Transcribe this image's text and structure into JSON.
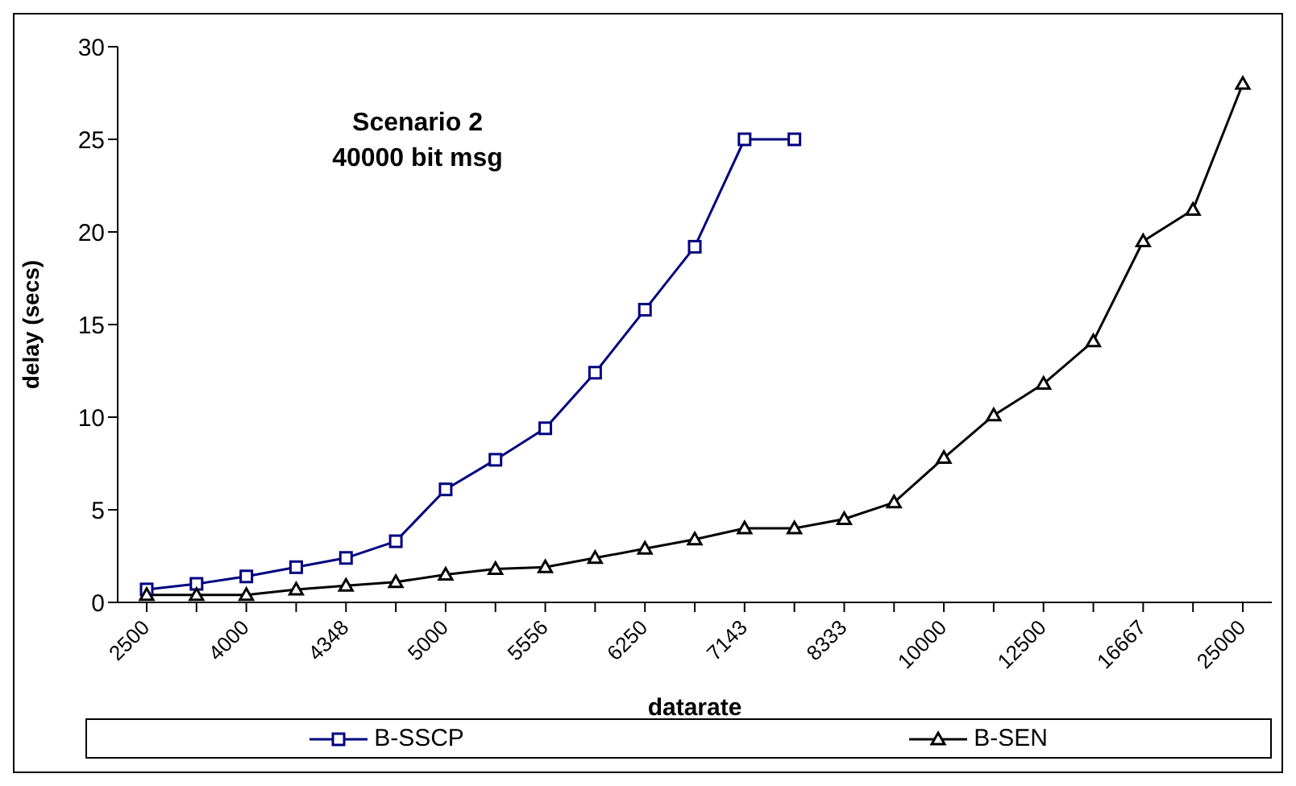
{
  "chart_data": {
    "type": "line",
    "title": "Scenario 2",
    "subtitle": "40000 bit msg",
    "xlabel": "datarate",
    "ylabel": "delay (secs)",
    "categories": [
      "2500",
      null,
      "4000",
      null,
      "4348",
      null,
      "5000",
      null,
      "5556",
      null,
      "6250",
      null,
      "7143",
      null,
      "8333",
      null,
      "10000",
      null,
      "12500",
      null,
      "16667",
      null,
      "25000"
    ],
    "series": [
      {
        "name": "B-SSCP",
        "color": "#000080",
        "marker": "square",
        "values": [
          0.7,
          1.0,
          1.4,
          1.9,
          2.4,
          3.3,
          6.1,
          7.7,
          9.4,
          12.4,
          15.8,
          19.2,
          25.0,
          25.0,
          null,
          null,
          null,
          null,
          null,
          null,
          null,
          null,
          null
        ]
      },
      {
        "name": "B-SEN",
        "color": "#000000",
        "marker": "triangle",
        "values": [
          0.4,
          0.4,
          0.4,
          0.7,
          0.9,
          1.1,
          1.5,
          1.8,
          1.9,
          2.4,
          2.9,
          3.4,
          4.0,
          4.0,
          4.5,
          5.4,
          7.8,
          10.1,
          11.8,
          14.1,
          19.5,
          21.2,
          28.0
        ]
      }
    ],
    "ylim": [
      0,
      30
    ],
    "yticks": [
      0,
      5,
      10,
      15,
      20,
      25,
      30
    ],
    "grid": false,
    "legend": "bottom",
    "line_style": "solid"
  }
}
